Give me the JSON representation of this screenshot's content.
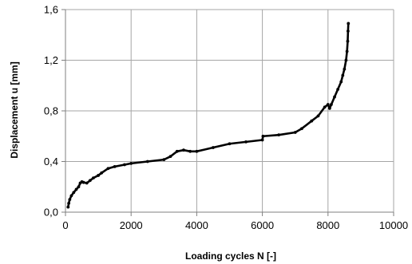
{
  "chart_data": {
    "type": "line",
    "title": "",
    "xlabel": "Loading cycles  N  [-]",
    "ylabel": "Displacement  u  [mm]",
    "xlim": [
      0,
      10000
    ],
    "ylim": [
      0,
      1.6
    ],
    "x_ticks": [
      0,
      2000,
      4000,
      6000,
      8000,
      10000
    ],
    "y_ticks": [
      0,
      0.4,
      0.8,
      1.2,
      1.6
    ],
    "x_tick_labels": [
      "0",
      "2000",
      "4000",
      "6000",
      "8000",
      "10000"
    ],
    "y_tick_labels": [
      "0,0",
      "0,4",
      "0,8",
      "1,2",
      "1,6"
    ],
    "grid": true,
    "legend": "none",
    "series": [
      {
        "color": "#000000",
        "points": [
          [
            80,
            0.04
          ],
          [
            100,
            0.07
          ],
          [
            130,
            0.1
          ],
          [
            180,
            0.13
          ],
          [
            250,
            0.155
          ],
          [
            330,
            0.18
          ],
          [
            400,
            0.2
          ],
          [
            450,
            0.23
          ],
          [
            500,
            0.24
          ],
          [
            550,
            0.235
          ],
          [
            650,
            0.23
          ],
          [
            750,
            0.25
          ],
          [
            850,
            0.27
          ],
          [
            1000,
            0.29
          ],
          [
            1100,
            0.31
          ],
          [
            1300,
            0.345
          ],
          [
            1500,
            0.36
          ],
          [
            1800,
            0.375
          ],
          [
            2000,
            0.385
          ],
          [
            2500,
            0.4
          ],
          [
            3000,
            0.415
          ],
          [
            3200,
            0.44
          ],
          [
            3400,
            0.48
          ],
          [
            3600,
            0.49
          ],
          [
            3800,
            0.48
          ],
          [
            4000,
            0.48
          ],
          [
            4500,
            0.51
          ],
          [
            5000,
            0.54
          ],
          [
            5500,
            0.555
          ],
          [
            6000,
            0.57
          ],
          [
            6020,
            0.6
          ],
          [
            6500,
            0.61
          ],
          [
            7000,
            0.63
          ],
          [
            7200,
            0.66
          ],
          [
            7500,
            0.72
          ],
          [
            7700,
            0.76
          ],
          [
            7900,
            0.83
          ],
          [
            8000,
            0.85
          ],
          [
            8050,
            0.82
          ],
          [
            8100,
            0.85
          ],
          [
            8200,
            0.91
          ],
          [
            8300,
            0.97
          ],
          [
            8400,
            1.03
          ],
          [
            8450,
            1.08
          ],
          [
            8500,
            1.13
          ],
          [
            8550,
            1.2
          ],
          [
            8580,
            1.27
          ],
          [
            8600,
            1.35
          ],
          [
            8610,
            1.43
          ],
          [
            8620,
            1.49
          ]
        ]
      }
    ]
  }
}
